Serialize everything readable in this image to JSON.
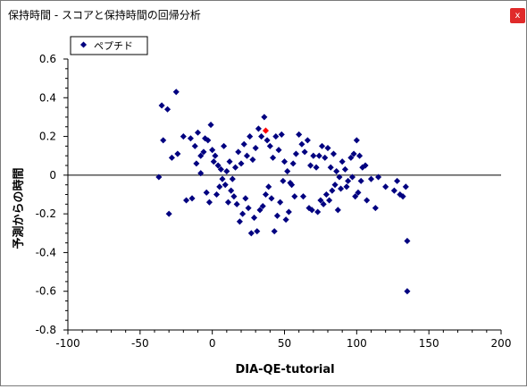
{
  "window": {
    "title": "保持時間 - スコアと保持時間の回帰分析",
    "close_label": "x"
  },
  "colors": {
    "point": "#000080",
    "highlight": "#ff0000",
    "axis": "#000000"
  },
  "chart_data": {
    "type": "scatter",
    "xlabel": "DIA-QE-tutorial",
    "ylabel": "予測からの時間",
    "xlim": [
      -100,
      200
    ],
    "ylim": [
      -0.8,
      0.6
    ],
    "x_ticks": [
      "-100",
      "-50",
      "0",
      "50",
      "100",
      "150",
      "200"
    ],
    "y_ticks": [
      "0.6",
      "0.4",
      "0.2",
      "0",
      "-0.2",
      "-0.4",
      "-0.6",
      "-0.8"
    ],
    "zero_line": true,
    "grid": false,
    "legend": {
      "position": "top-left",
      "entries": [
        "ペプチド"
      ]
    },
    "series": [
      {
        "name": "ペプチド",
        "points": [
          [
            -35,
            0.36
          ],
          [
            -31,
            0.34
          ],
          [
            -25,
            0.43
          ],
          [
            -20,
            0.2
          ],
          [
            -15,
            0.19
          ],
          [
            -12,
            0.15
          ],
          [
            -10,
            0.22
          ],
          [
            -8,
            0.1
          ],
          [
            -5,
            0.19
          ],
          [
            -3,
            0.18
          ],
          [
            -1,
            0.26
          ],
          [
            0,
            0.13
          ],
          [
            2,
            0.1
          ],
          [
            4,
            0.05
          ],
          [
            6,
            0.03
          ],
          [
            8,
            0.15
          ],
          [
            10,
            0.02
          ],
          [
            12,
            0.07
          ],
          [
            14,
            -0.02
          ],
          [
            16,
            0.04
          ],
          [
            18,
            0.12
          ],
          [
            20,
            0.06
          ],
          [
            22,
            0.16
          ],
          [
            24,
            0.1
          ],
          [
            26,
            0.2
          ],
          [
            28,
            0.08
          ],
          [
            30,
            0.14
          ],
          [
            32,
            0.24
          ],
          [
            34,
            0.2
          ],
          [
            36,
            0.3
          ],
          [
            38,
            0.18
          ],
          [
            40,
            0.15
          ],
          [
            42,
            0.09
          ],
          [
            44,
            0.2
          ],
          [
            46,
            0.13
          ],
          [
            48,
            0.21
          ],
          [
            50,
            0.07
          ],
          [
            52,
            0.02
          ],
          [
            54,
            -0.04
          ],
          [
            56,
            0.06
          ],
          [
            58,
            0.11
          ],
          [
            60,
            0.21
          ],
          [
            62,
            0.16
          ],
          [
            64,
            0.12
          ],
          [
            66,
            0.18
          ],
          [
            68,
            0.05
          ],
          [
            70,
            0.1
          ],
          [
            72,
            0.04
          ],
          [
            74,
            0.1
          ],
          [
            76,
            0.15
          ],
          [
            78,
            0.09
          ],
          [
            80,
            0.14
          ],
          [
            82,
            0.04
          ],
          [
            84,
            0.11
          ],
          [
            86,
            0.02
          ],
          [
            88,
            -0.01
          ],
          [
            90,
            0.07
          ],
          [
            92,
            0.03
          ],
          [
            94,
            -0.03
          ],
          [
            96,
            0.09
          ],
          [
            98,
            0.11
          ],
          [
            100,
            0.18
          ],
          [
            102,
            0.1
          ],
          [
            104,
            0.04
          ],
          [
            106,
            0.05
          ],
          [
            110,
            -0.02
          ],
          [
            115,
            -0.01
          ],
          [
            -37,
            -0.01
          ],
          [
            -34,
            0.18
          ],
          [
            -30,
            -0.2
          ],
          [
            -28,
            0.09
          ],
          [
            -24,
            0.11
          ],
          [
            -18,
            -0.13
          ],
          [
            -14,
            -0.12
          ],
          [
            -11,
            0.06
          ],
          [
            -8,
            0.01
          ],
          [
            -6,
            0.12
          ],
          [
            -4,
            -0.09
          ],
          [
            -2,
            -0.14
          ],
          [
            1,
            0.07
          ],
          [
            3,
            -0.1
          ],
          [
            5,
            -0.06
          ],
          [
            7,
            -0.02
          ],
          [
            9,
            -0.05
          ],
          [
            11,
            -0.14
          ],
          [
            13,
            -0.08
          ],
          [
            15,
            -0.11
          ],
          [
            17,
            -0.15
          ],
          [
            19,
            -0.24
          ],
          [
            21,
            -0.2
          ],
          [
            23,
            -0.12
          ],
          [
            25,
            -0.17
          ],
          [
            27,
            -0.3
          ],
          [
            29,
            -0.22
          ],
          [
            31,
            -0.29
          ],
          [
            33,
            -0.18
          ],
          [
            35,
            -0.16
          ],
          [
            37,
            -0.1
          ],
          [
            39,
            -0.06
          ],
          [
            41,
            -0.12
          ],
          [
            43,
            -0.29
          ],
          [
            45,
            -0.21
          ],
          [
            47,
            -0.14
          ],
          [
            49,
            -0.03
          ],
          [
            51,
            -0.23
          ],
          [
            53,
            -0.19
          ],
          [
            55,
            -0.05
          ],
          [
            57,
            -0.11
          ],
          [
            63,
            -0.11
          ],
          [
            67,
            -0.17
          ],
          [
            69,
            -0.18
          ],
          [
            73,
            -0.19
          ],
          [
            75,
            -0.13
          ],
          [
            77,
            -0.15
          ],
          [
            79,
            -0.1
          ],
          [
            81,
            -0.13
          ],
          [
            83,
            -0.08
          ],
          [
            85,
            -0.05
          ],
          [
            87,
            -0.18
          ],
          [
            89,
            -0.07
          ],
          [
            93,
            -0.06
          ],
          [
            97,
            -0.01
          ],
          [
            99,
            -0.11
          ],
          [
            101,
            -0.09
          ],
          [
            103,
            -0.03
          ],
          [
            107,
            -0.13
          ],
          [
            113,
            -0.17
          ],
          [
            120,
            -0.06
          ],
          [
            126,
            -0.08
          ],
          [
            128,
            -0.03
          ],
          [
            130,
            -0.1
          ],
          [
            132,
            -0.11
          ],
          [
            134,
            -0.06
          ],
          [
            135,
            -0.34
          ],
          [
            135,
            -0.6
          ]
        ]
      }
    ],
    "highlight_point": [
      37,
      0.23
    ]
  }
}
